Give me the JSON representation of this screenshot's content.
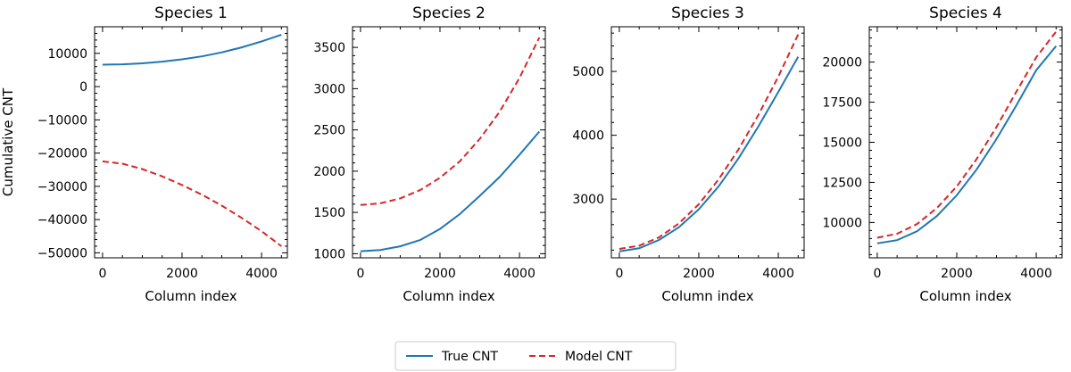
{
  "chart_data": [
    {
      "type": "line",
      "title": "Species 1",
      "xlabel": "Column index",
      "ylabel": "Cumulative CNT",
      "xlim": [
        -200,
        4650
      ],
      "ylim": [
        -51500,
        18000
      ],
      "xticks": [
        0,
        2000,
        4000
      ],
      "yticks": [
        -50000,
        -40000,
        -30000,
        -20000,
        -10000,
        0,
        10000
      ],
      "x": [
        0,
        500,
        1000,
        1500,
        2000,
        2500,
        3000,
        3500,
        4000,
        4500
      ],
      "series": [
        {
          "name": "True CNT",
          "values": [
            6600,
            6700,
            7000,
            7500,
            8200,
            9100,
            10300,
            11800,
            13600,
            15600
          ]
        },
        {
          "name": "Model CNT",
          "values": [
            -22500,
            -23200,
            -24800,
            -27000,
            -29600,
            -32500,
            -35800,
            -39500,
            -43500,
            -48000
          ]
        }
      ]
    },
    {
      "type": "line",
      "title": "Species 2",
      "xlabel": "Column index",
      "ylabel": "",
      "xlim": [
        -200,
        4650
      ],
      "ylim": [
        950,
        3750
      ],
      "xticks": [
        0,
        2000,
        4000
      ],
      "yticks": [
        1000,
        1500,
        2000,
        2500,
        3000,
        3500
      ],
      "x": [
        0,
        500,
        1000,
        1500,
        2000,
        2500,
        3000,
        3500,
        4000,
        4500
      ],
      "series": [
        {
          "name": "True CNT",
          "values": [
            1030,
            1045,
            1090,
            1165,
            1300,
            1480,
            1700,
            1930,
            2200,
            2480
          ]
        },
        {
          "name": "Model CNT",
          "values": [
            1590,
            1610,
            1670,
            1770,
            1920,
            2120,
            2390,
            2720,
            3130,
            3620
          ]
        }
      ]
    },
    {
      "type": "line",
      "title": "Species 3",
      "xlabel": "Column index",
      "ylabel": "",
      "xlim": [
        -200,
        4650
      ],
      "ylim": [
        2080,
        5700
      ],
      "xticks": [
        0,
        2000,
        4000
      ],
      "yticks": [
        3000,
        4000,
        5000
      ],
      "x": [
        0,
        500,
        1000,
        1500,
        2000,
        2500,
        3000,
        3500,
        4000,
        4500
      ],
      "series": [
        {
          "name": "True CNT",
          "values": [
            2180,
            2230,
            2360,
            2560,
            2840,
            3200,
            3640,
            4140,
            4680,
            5230
          ]
        },
        {
          "name": "Model CNT",
          "values": [
            2220,
            2270,
            2400,
            2620,
            2920,
            3310,
            3780,
            4320,
            4920,
            5580
          ]
        }
      ]
    },
    {
      "type": "line",
      "title": "Species 4",
      "xlabel": "Column index",
      "ylabel": "",
      "xlim": [
        -200,
        4650
      ],
      "ylim": [
        7800,
        22200
      ],
      "xticks": [
        0,
        2000,
        4000
      ],
      "yticks": [
        10000,
        12500,
        15000,
        17500,
        20000
      ],
      "x": [
        0,
        500,
        1000,
        1500,
        2000,
        2500,
        3000,
        3500,
        4000,
        4500
      ],
      "series": [
        {
          "name": "True CNT",
          "values": [
            8700,
            8900,
            9450,
            10400,
            11700,
            13300,
            15200,
            17300,
            19500,
            21000
          ]
        },
        {
          "name": "Model CNT",
          "values": [
            9050,
            9300,
            9900,
            10900,
            12250,
            13950,
            15950,
            18150,
            20300,
            21900
          ]
        }
      ]
    }
  ],
  "legend": {
    "entries": [
      {
        "label": "True CNT",
        "color": "#1f77b4",
        "style": "solid"
      },
      {
        "label": "Model CNT",
        "color": "#d62728",
        "style": "dashed"
      }
    ],
    "position": "bottom-center"
  }
}
